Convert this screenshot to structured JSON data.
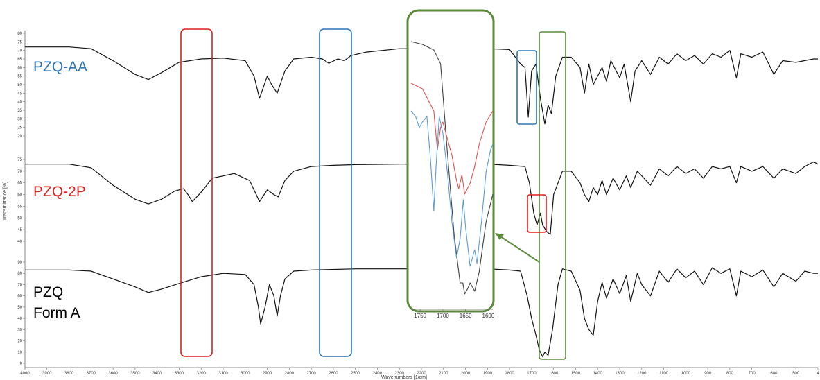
{
  "chart_data": {
    "type": "line",
    "xlabel": "Wavenumbers [1/cm]",
    "ylabel": "Transmittance [%]",
    "xlim": [
      4000,
      400
    ],
    "x_ticks": [
      "4000",
      "3900",
      "3800",
      "3700",
      "3600",
      "3500",
      "3400",
      "3300",
      "3200",
      "3100",
      "3000",
      "2900",
      "2800",
      "2700",
      "2600",
      "2500",
      "2400",
      "2300",
      "2200",
      "2100",
      "2000",
      "1900",
      "1800",
      "1700",
      "1600",
      "1500",
      "1400",
      "1300",
      "1200",
      "1100",
      "1000",
      "900",
      "800",
      "700",
      "600",
      "500",
      "4"
    ],
    "panels": [
      {
        "series_label": "PZQ-AA",
        "label_color": "#2e75b6",
        "ylim": [
          20,
          80
        ],
        "y_ticks": [
          "80",
          "75",
          "70",
          "65",
          "60",
          "55",
          "50",
          "45",
          "40",
          "35",
          "30",
          "25",
          "20"
        ],
        "points": [
          [
            4000,
            72
          ],
          [
            3800,
            72
          ],
          [
            3700,
            71
          ],
          [
            3600,
            64
          ],
          [
            3500,
            56
          ],
          [
            3440,
            53
          ],
          [
            3380,
            57
          ],
          [
            3300,
            63
          ],
          [
            3200,
            65
          ],
          [
            3100,
            65.5
          ],
          [
            3000,
            64
          ],
          [
            2960,
            55
          ],
          [
            2935,
            42
          ],
          [
            2900,
            55
          ],
          [
            2880,
            50
          ],
          [
            2855,
            45
          ],
          [
            2820,
            58
          ],
          [
            2780,
            65
          ],
          [
            2700,
            66
          ],
          [
            2650,
            65
          ],
          [
            2620,
            62.5
          ],
          [
            2580,
            65
          ],
          [
            2550,
            64
          ],
          [
            2520,
            67
          ],
          [
            2450,
            69
          ],
          [
            2300,
            71
          ],
          [
            2100,
            71
          ],
          [
            1900,
            71
          ],
          [
            1800,
            70.5
          ],
          [
            1750,
            62
          ],
          [
            1730,
            60
          ],
          [
            1715,
            31
          ],
          [
            1700,
            58
          ],
          [
            1680,
            62
          ],
          [
            1660,
            42
          ],
          [
            1640,
            27
          ],
          [
            1625,
            38
          ],
          [
            1610,
            33
          ],
          [
            1590,
            55
          ],
          [
            1560,
            66
          ],
          [
            1520,
            66
          ],
          [
            1480,
            60
          ],
          [
            1460,
            45
          ],
          [
            1440,
            62
          ],
          [
            1420,
            50
          ],
          [
            1380,
            60
          ],
          [
            1360,
            52
          ],
          [
            1340,
            64
          ],
          [
            1300,
            54
          ],
          [
            1280,
            62
          ],
          [
            1250,
            40
          ],
          [
            1230,
            58
          ],
          [
            1200,
            64
          ],
          [
            1160,
            56
          ],
          [
            1120,
            66
          ],
          [
            1080,
            62
          ],
          [
            1040,
            68
          ],
          [
            1000,
            64
          ],
          [
            960,
            67
          ],
          [
            920,
            62
          ],
          [
            880,
            68
          ],
          [
            840,
            66
          ],
          [
            800,
            70
          ],
          [
            770,
            54
          ],
          [
            750,
            68
          ],
          [
            700,
            66
          ],
          [
            650,
            69
          ],
          [
            600,
            56
          ],
          [
            560,
            64
          ],
          [
            500,
            63
          ],
          [
            420,
            65
          ],
          [
            400,
            65
          ]
        ]
      },
      {
        "series_label": "PZQ-2P",
        "label_color": "#e01e1e",
        "ylim": [
          40,
          75
        ],
        "y_ticks": [
          "75",
          "70",
          "65",
          "60",
          "55",
          "50",
          "45",
          "40"
        ],
        "points": [
          [
            4000,
            73
          ],
          [
            3800,
            73
          ],
          [
            3700,
            71.5
          ],
          [
            3600,
            64
          ],
          [
            3500,
            58
          ],
          [
            3440,
            56
          ],
          [
            3380,
            58
          ],
          [
            3320,
            61.5
          ],
          [
            3280,
            62.5
          ],
          [
            3260,
            60
          ],
          [
            3240,
            57
          ],
          [
            3200,
            61
          ],
          [
            3150,
            67
          ],
          [
            3050,
            69
          ],
          [
            2980,
            66
          ],
          [
            2950,
            60
          ],
          [
            2935,
            57
          ],
          [
            2900,
            62
          ],
          [
            2870,
            60
          ],
          [
            2850,
            59
          ],
          [
            2820,
            66
          ],
          [
            2780,
            70
          ],
          [
            2700,
            72
          ],
          [
            2600,
            72.5
          ],
          [
            2500,
            72.8
          ],
          [
            2300,
            73
          ],
          [
            2100,
            73
          ],
          [
            1900,
            73
          ],
          [
            1800,
            72.5
          ],
          [
            1730,
            72
          ],
          [
            1710,
            65
          ],
          [
            1690,
            52
          ],
          [
            1675,
            47
          ],
          [
            1660,
            52
          ],
          [
            1650,
            47
          ],
          [
            1640,
            45.5
          ],
          [
            1630,
            44
          ],
          [
            1615,
            43
          ],
          [
            1600,
            60
          ],
          [
            1560,
            70
          ],
          [
            1520,
            70
          ],
          [
            1480,
            65
          ],
          [
            1460,
            60
          ],
          [
            1440,
            57
          ],
          [
            1420,
            63
          ],
          [
            1400,
            60
          ],
          [
            1380,
            66
          ],
          [
            1360,
            60
          ],
          [
            1330,
            67
          ],
          [
            1300,
            62
          ],
          [
            1270,
            68
          ],
          [
            1250,
            63
          ],
          [
            1220,
            70
          ],
          [
            1200,
            68
          ],
          [
            1160,
            64
          ],
          [
            1120,
            71
          ],
          [
            1080,
            68
          ],
          [
            1040,
            72
          ],
          [
            1000,
            69
          ],
          [
            960,
            71
          ],
          [
            920,
            67
          ],
          [
            880,
            72
          ],
          [
            840,
            71
          ],
          [
            800,
            72
          ],
          [
            770,
            65
          ],
          [
            750,
            72
          ],
          [
            700,
            70
          ],
          [
            650,
            72
          ],
          [
            600,
            67
          ],
          [
            560,
            71
          ],
          [
            500,
            69
          ],
          [
            460,
            72
          ],
          [
            420,
            74
          ],
          [
            400,
            73
          ]
        ]
      },
      {
        "series_label": "PZQ\nForm A",
        "label_color": "#000000",
        "ylim": [
          0,
          90
        ],
        "y_ticks": [
          "90",
          "80",
          "70",
          "60",
          "50",
          "40",
          "30",
          "20",
          "10",
          "0"
        ],
        "points": [
          [
            4000,
            83
          ],
          [
            3800,
            83
          ],
          [
            3700,
            82
          ],
          [
            3600,
            75
          ],
          [
            3500,
            68
          ],
          [
            3440,
            63
          ],
          [
            3380,
            66
          ],
          [
            3300,
            71
          ],
          [
            3200,
            77
          ],
          [
            3100,
            80
          ],
          [
            3000,
            79
          ],
          [
            2960,
            70
          ],
          [
            2940,
            50
          ],
          [
            2930,
            35
          ],
          [
            2910,
            50
          ],
          [
            2890,
            70
          ],
          [
            2870,
            60
          ],
          [
            2855,
            42
          ],
          [
            2840,
            60
          ],
          [
            2820,
            75
          ],
          [
            2780,
            82
          ],
          [
            2700,
            83
          ],
          [
            2500,
            84
          ],
          [
            2300,
            84
          ],
          [
            2100,
            84
          ],
          [
            1900,
            84
          ],
          [
            1800,
            83
          ],
          [
            1750,
            82
          ],
          [
            1720,
            60
          ],
          [
            1700,
            40
          ],
          [
            1680,
            25
          ],
          [
            1665,
            12
          ],
          [
            1650,
            6
          ],
          [
            1640,
            10
          ],
          [
            1625,
            7
          ],
          [
            1605,
            30
          ],
          [
            1580,
            70
          ],
          [
            1560,
            84
          ],
          [
            1520,
            82
          ],
          [
            1480,
            65
          ],
          [
            1460,
            40
          ],
          [
            1440,
            30
          ],
          [
            1420,
            25
          ],
          [
            1400,
            55
          ],
          [
            1380,
            72
          ],
          [
            1360,
            58
          ],
          [
            1330,
            75
          ],
          [
            1300,
            62
          ],
          [
            1270,
            78
          ],
          [
            1250,
            55
          ],
          [
            1220,
            80
          ],
          [
            1200,
            70
          ],
          [
            1160,
            60
          ],
          [
            1120,
            82
          ],
          [
            1080,
            72
          ],
          [
            1040,
            84
          ],
          [
            1000,
            76
          ],
          [
            960,
            82
          ],
          [
            920,
            70
          ],
          [
            880,
            85
          ],
          [
            840,
            80
          ],
          [
            800,
            84
          ],
          [
            770,
            60
          ],
          [
            750,
            82
          ],
          [
            700,
            77
          ],
          [
            650,
            83
          ],
          [
            600,
            68
          ],
          [
            560,
            80
          ],
          [
            500,
            73
          ],
          [
            460,
            82
          ],
          [
            420,
            80
          ],
          [
            400,
            80
          ]
        ]
      }
    ],
    "inset": {
      "x_ticks": [
        "1750",
        "1700",
        "1650",
        "1600"
      ],
      "xlim": [
        1770,
        1590
      ],
      "series": [
        {
          "color": "#404040",
          "points": [
            [
              1770,
              95
            ],
            [
              1745,
              94
            ],
            [
              1720,
              92
            ],
            [
              1705,
              87
            ],
            [
              1690,
              55
            ],
            [
              1675,
              25
            ],
            [
              1662,
              8
            ],
            [
              1656,
              8
            ],
            [
              1652,
              4
            ],
            [
              1645,
              6
            ],
            [
              1640,
              8
            ],
            [
              1630,
              5
            ],
            [
              1620,
              12
            ],
            [
              1605,
              30
            ],
            [
              1590,
              40
            ]
          ]
        },
        {
          "color": "#e05050",
          "points": [
            [
              1770,
              80
            ],
            [
              1745,
              78
            ],
            [
              1720,
              70
            ],
            [
              1712,
              56
            ],
            [
              1705,
              64
            ],
            [
              1700,
              66
            ],
            [
              1690,
              60
            ],
            [
              1680,
              54
            ],
            [
              1670,
              45
            ],
            [
              1665,
              42
            ],
            [
              1658,
              47
            ],
            [
              1652,
              40
            ],
            [
              1640,
              44
            ],
            [
              1630,
              50
            ],
            [
              1620,
              58
            ],
            [
              1605,
              66
            ],
            [
              1590,
              70
            ]
          ]
        },
        {
          "color": "#5b9bd5",
          "points": [
            [
              1770,
              70
            ],
            [
              1760,
              68
            ],
            [
              1752,
              64
            ],
            [
              1745,
              66
            ],
            [
              1735,
              68
            ],
            [
              1727,
              52
            ],
            [
              1720,
              34
            ],
            [
              1715,
              50
            ],
            [
              1708,
              68
            ],
            [
              1700,
              62
            ],
            [
              1690,
              48
            ],
            [
              1680,
              30
            ],
            [
              1670,
              17
            ],
            [
              1662,
              24
            ],
            [
              1655,
              38
            ],
            [
              1650,
              28
            ],
            [
              1640,
              14
            ],
            [
              1630,
              20
            ],
            [
              1625,
              15
            ],
            [
              1615,
              30
            ],
            [
              1605,
              48
            ],
            [
              1595,
              56
            ],
            [
              1590,
              58
            ]
          ]
        }
      ]
    },
    "highlights": [
      {
        "name": "red-box-nh",
        "color": "#e01e1e"
      },
      {
        "name": "blue-box-oh",
        "color": "#2e75b6"
      },
      {
        "name": "inset-frame",
        "color": "#5b8a3a"
      },
      {
        "name": "blue-box-co",
        "color": "#2e75b6"
      },
      {
        "name": "green-box-co",
        "color": "#5b8a3a"
      },
      {
        "name": "red-box-co",
        "color": "#e01e1e"
      }
    ]
  }
}
